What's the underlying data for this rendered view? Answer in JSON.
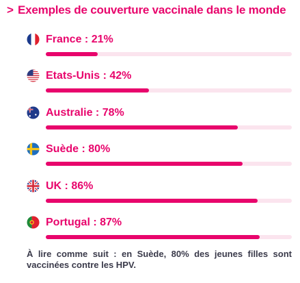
{
  "title": "Exemples de couverture vaccinale dans le monde",
  "title_icon": "chevron-right-icon",
  "colors": {
    "accent": "#e8056c",
    "track": "#fbe4ee",
    "text": "#3a3a4a"
  },
  "chart_data": {
    "type": "bar",
    "orientation": "horizontal",
    "ylim": [
      0,
      100
    ],
    "categories": [
      "France",
      "Etats-Unis",
      "Australie",
      "Suède",
      "UK",
      "Portugal"
    ],
    "values": [
      21,
      42,
      78,
      80,
      86,
      87
    ],
    "labels": [
      "France : 21%",
      "Etats-Unis : 42%",
      "Australie : 78%",
      "Suède : 80%",
      "UK : 86%",
      "Portugal : 87%"
    ],
    "flags": [
      "france-flag-icon",
      "usa-flag-icon",
      "australia-flag-icon",
      "sweden-flag-icon",
      "uk-flag-icon",
      "portugal-flag-icon"
    ]
  },
  "footnote": "À lire comme suit : en Suède, 80% des jeunes filles sont vaccinées contre les HPV."
}
